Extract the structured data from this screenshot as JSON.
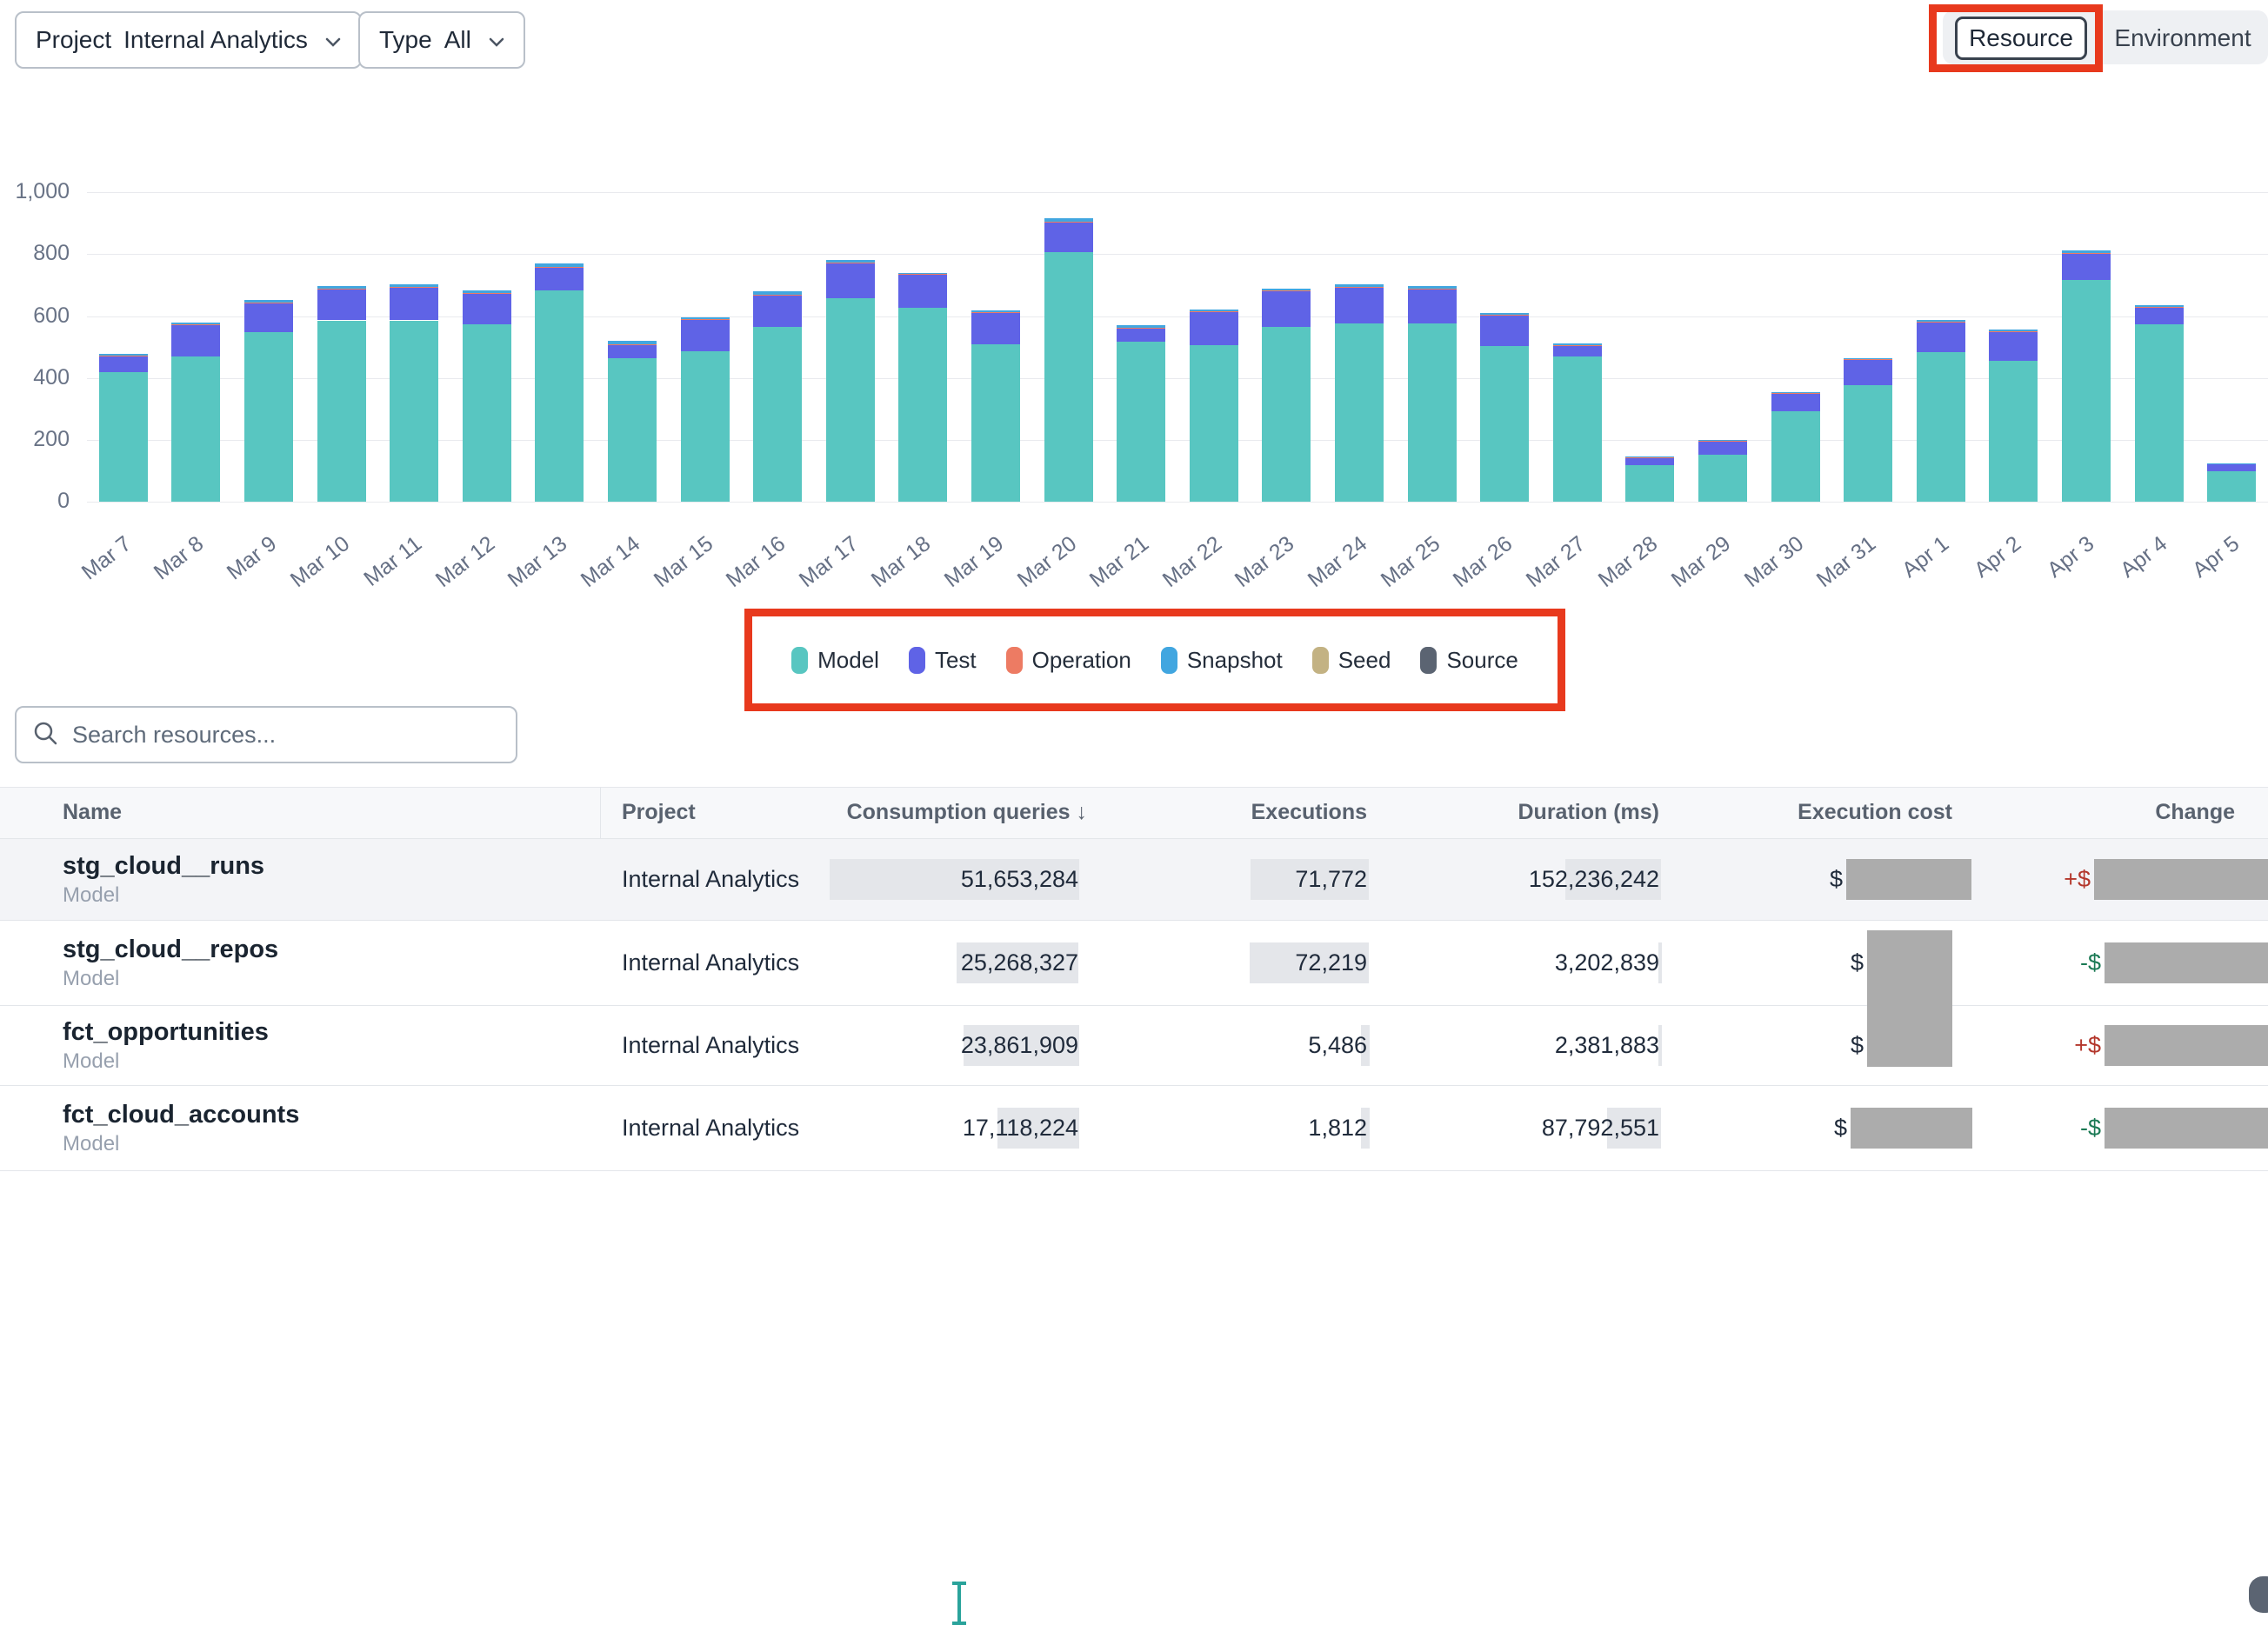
{
  "toolbar": {
    "project_filter": {
      "label": "Project",
      "value": "Internal Analytics"
    },
    "type_filter": {
      "label": "Type",
      "value": "All"
    },
    "view_toggle": {
      "selected": "Resource",
      "other": "Environment"
    }
  },
  "chart_data": {
    "type": "bar",
    "stacked": true,
    "title": "",
    "xlabel": "",
    "ylabel": "",
    "ylim": [
      0,
      1000
    ],
    "yticks": [
      0,
      200,
      400,
      600,
      800,
      1000
    ],
    "ytick_labels": [
      "0",
      "200",
      "400",
      "600",
      "800",
      "1,000"
    ],
    "grid": true,
    "legend_position": "bottom",
    "categories": [
      "Mar 7",
      "Mar 8",
      "Mar 9",
      "Mar 10",
      "Mar 11",
      "Mar 12",
      "Mar 13",
      "Mar 14",
      "Mar 15",
      "Mar 16",
      "Mar 17",
      "Mar 18",
      "Mar 19",
      "Mar 20",
      "Mar 21",
      "Mar 22",
      "Mar 23",
      "Mar 24",
      "Mar 25",
      "Mar 26",
      "Mar 27",
      "Mar 28",
      "Mar 29",
      "Mar 30",
      "Mar 31",
      "Apr 1",
      "Apr 2",
      "Apr 3",
      "Apr 4",
      "Apr 5"
    ],
    "series": [
      {
        "name": "Model",
        "color": "#58c6c1",
        "values": [
          420,
          468,
          548,
          586,
          586,
          572,
          684,
          463,
          487,
          564,
          659,
          626,
          508,
          808,
          518,
          505,
          566,
          575,
          575,
          504,
          468,
          119,
          152,
          291,
          377,
          483,
          455,
          718,
          573,
          98
        ]
      },
      {
        "name": "Test",
        "color": "#5f63e6",
        "values": [
          52,
          105,
          95,
          100,
          105,
          100,
          73,
          45,
          102,
          103,
          112,
          109,
          103,
          94,
          43,
          108,
          116,
          117,
          112,
          97,
          37,
          23,
          43,
          57,
          81,
          96,
          95,
          85,
          55,
          24
        ]
      },
      {
        "name": "Operation",
        "color": "#ed7b63",
        "values": [
          1,
          1,
          2,
          2,
          2,
          2,
          3,
          2,
          2,
          2,
          2,
          2,
          2,
          3,
          2,
          2,
          2,
          3,
          2,
          2,
          2,
          1,
          2,
          2,
          2,
          2,
          2,
          2,
          2,
          1
        ]
      },
      {
        "name": "Snapshot",
        "color": "#41a6e0",
        "values": [
          4,
          5,
          8,
          8,
          10,
          10,
          11,
          9,
          6,
          10,
          7,
          3,
          4,
          10,
          7,
          6,
          5,
          7,
          8,
          7,
          4,
          2,
          2,
          3,
          3,
          6,
          5,
          6,
          5,
          2
        ]
      },
      {
        "name": "Seed",
        "color": "#c3b283",
        "values": [
          0,
          0,
          0,
          0,
          0,
          0,
          0,
          0,
          0,
          0,
          0,
          0,
          0,
          0,
          0,
          0,
          0,
          0,
          0,
          0,
          0,
          0,
          0,
          0,
          0,
          0,
          0,
          0,
          0,
          0
        ]
      },
      {
        "name": "Source",
        "color": "#5b6472",
        "values": [
          0,
          0,
          0,
          0,
          0,
          0,
          0,
          0,
          0,
          0,
          0,
          0,
          0,
          0,
          0,
          0,
          0,
          0,
          0,
          0,
          0,
          0,
          0,
          0,
          0,
          0,
          0,
          0,
          0,
          0
        ]
      }
    ]
  },
  "search": {
    "placeholder": "Search resources..."
  },
  "table": {
    "columns": [
      "Name",
      "Project",
      "Consumption queries",
      "Executions",
      "Duration (ms)",
      "Execution cost",
      "Change"
    ],
    "sort": {
      "column": "Consumption queries",
      "icon": "↓"
    },
    "rows": [
      {
        "name": "stg_cloud__runs",
        "type": "Model",
        "project": "Internal Analytics",
        "consumption": "51,653,284",
        "executions": "71,772",
        "duration": "152,236,242",
        "cost_sign": "$",
        "cost_redacted": true,
        "change_sign": "+$",
        "change_direction": "increase",
        "change_redacted": true
      },
      {
        "name": "stg_cloud__repos",
        "type": "Model",
        "project": "Internal Analytics",
        "consumption": "25,268,327",
        "executions": "72,219",
        "duration": "3,202,839",
        "cost_sign": "$",
        "cost_redacted": true,
        "change_sign": "-$",
        "change_direction": "decrease",
        "change_redacted": true
      },
      {
        "name": "fct_opportunities",
        "type": "Model",
        "project": "Internal Analytics",
        "consumption": "23,861,909",
        "executions": "5,486",
        "duration": "2,381,883",
        "cost_sign": "$",
        "cost_redacted": true,
        "change_sign": "+$",
        "change_direction": "increase",
        "change_redacted": true
      },
      {
        "name": "fct_cloud_accounts",
        "type": "Model",
        "project": "Internal Analytics",
        "consumption": "17,118,224",
        "executions": "1,812",
        "duration": "87,792,551",
        "cost_sign": "$",
        "cost_redacted": true,
        "change_sign": "-$",
        "change_direction": "decrease",
        "change_redacted": true
      }
    ]
  },
  "annotations": {
    "highlight_color": "#e8391d"
  },
  "colors": {
    "change_increase": "#b4372c",
    "change_decrease": "#1b7a55",
    "cursor_teal": "#2aa39b",
    "header_text": "#59626f",
    "value_highlight": "#e4e6ea",
    "redaction_gray": "#acacac"
  }
}
